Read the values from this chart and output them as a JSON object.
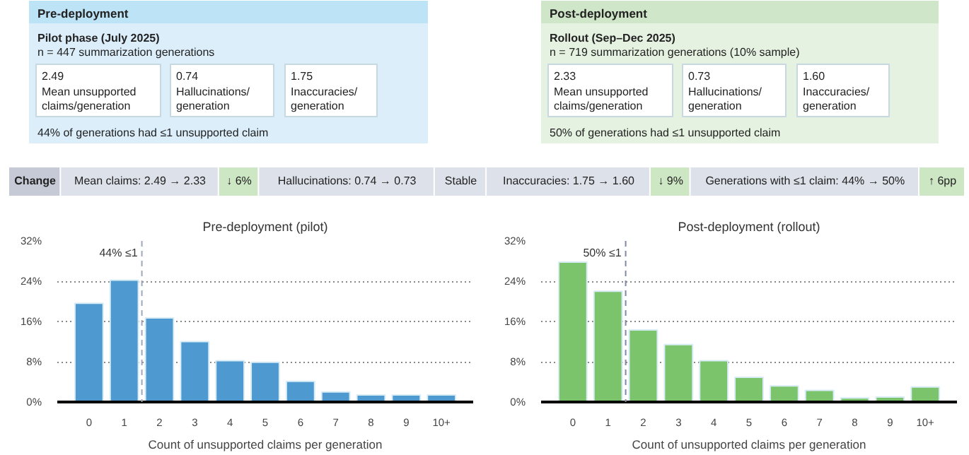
{
  "chart_data": [
    {
      "type": "other",
      "title": "Pre-deployment",
      "subtitle": "Pilot phase (July 2025)",
      "annotations": [
        "n = 447 summarization generations",
        "2.49",
        "Mean unsupported\nclaims/generation",
        "0.74",
        "Hallucinations/\ngeneration",
        "1.75",
        "Inaccuracies/\ngeneration",
        "44% of generations had ≤1 unsupported claim"
      ],
      "colors": [
        "#bde3f6",
        "#dbeefa",
        "#ffffff"
      ]
    },
    {
      "type": "other",
      "title": "Post-deployment",
      "subtitle": "Rollout (Sep–Dec 2025)",
      "annotations": [
        "n = 719 summarization generations (10% sample)",
        "2.33",
        "Mean unsupported\nclaims/generation",
        "0.73",
        "Hallucinations/\ngeneration",
        "1.60",
        "Inaccuracies/\ngeneration",
        "50% of generations had ≤1 unsupported claim"
      ],
      "colors": [
        "#cfe6c8",
        "#e6f2e1",
        "#ffffff"
      ]
    },
    {
      "type": "other",
      "annotations": [
        "Change",
        "Mean claims: 2.49 → 2.33",
        "↓ 6%",
        "Hallucinations: 0.74 → 0.73",
        "Stable",
        "Inaccuracies: 1.75 → 1.60",
        "↓ 9%",
        "Generations with ≤1 claim: 44% → 50%",
        "↑ 6pp"
      ],
      "colors": [
        "#c5cad6",
        "#dde1e9",
        "#cde6c4",
        "#dde1e9",
        "#dde1e9",
        "#dde1e9",
        "#cde6c4",
        "#dde1e9",
        "#cde6c4"
      ]
    },
    {
      "type": "bar",
      "title": "Pre-deployment (pilot)",
      "xlabel": "Count of unsupported claims per generation",
      "x": [
        0,
        1,
        2,
        3,
        4,
        5,
        6,
        7,
        8,
        9,
        10
      ],
      "xlim": [
        -0.9,
        10.9
      ],
      "xticks": [
        0,
        1,
        2,
        3,
        4,
        5,
        6,
        7,
        8,
        9,
        {
          "value": 10,
          "label": "10+"
        }
      ],
      "values": [
        19.6,
        24.2,
        16.7,
        12.0,
        8.2,
        7.9,
        4.1,
        2.0,
        1.4,
        1.4,
        1.4
      ],
      "color": "#4e9ad0",
      "ylim": [
        0,
        32
      ],
      "yticks": [
        {
          "value": 0,
          "label": "0%"
        },
        {
          "value": 8,
          "label": "8%"
        },
        {
          "value": 16,
          "label": "16%"
        },
        {
          "value": 24,
          "label": "24%"
        },
        {
          "value": 32,
          "label": "32%"
        }
      ],
      "grid": "y",
      "ref_lines": [
        {
          "axis": "x",
          "value": 1.5,
          "label": "44% ≤1",
          "line_style": "dashed",
          "color": "#a0a8b8"
        }
      ]
    },
    {
      "type": "bar",
      "title": "Post-deployment (rollout)",
      "xlabel": "Count of unsupported claims per generation",
      "x": [
        0,
        1,
        2,
        3,
        4,
        5,
        6,
        7,
        8,
        9,
        10
      ],
      "xlim": [
        -0.9,
        10.9
      ],
      "xticks": [
        0,
        1,
        2,
        3,
        4,
        5,
        6,
        7,
        8,
        9,
        {
          "value": 10,
          "label": "10+"
        }
      ],
      "values": [
        27.8,
        22.0,
        14.3,
        11.4,
        8.2,
        4.9,
        3.2,
        2.3,
        0.8,
        1.0,
        3.0
      ],
      "color": "#7cc46c",
      "ylim": [
        0,
        32
      ],
      "yticks": [
        {
          "value": 0,
          "label": "0%"
        },
        {
          "value": 8,
          "label": "8%"
        },
        {
          "value": 16,
          "label": "16%"
        },
        {
          "value": 24,
          "label": "24%"
        },
        {
          "value": 32,
          "label": "32%"
        }
      ],
      "grid": "y",
      "ref_lines": [
        {
          "axis": "x",
          "value": 1.5,
          "label": "50% ≤1",
          "line_style": "dashed",
          "color": "#7f88a8"
        }
      ]
    }
  ]
}
